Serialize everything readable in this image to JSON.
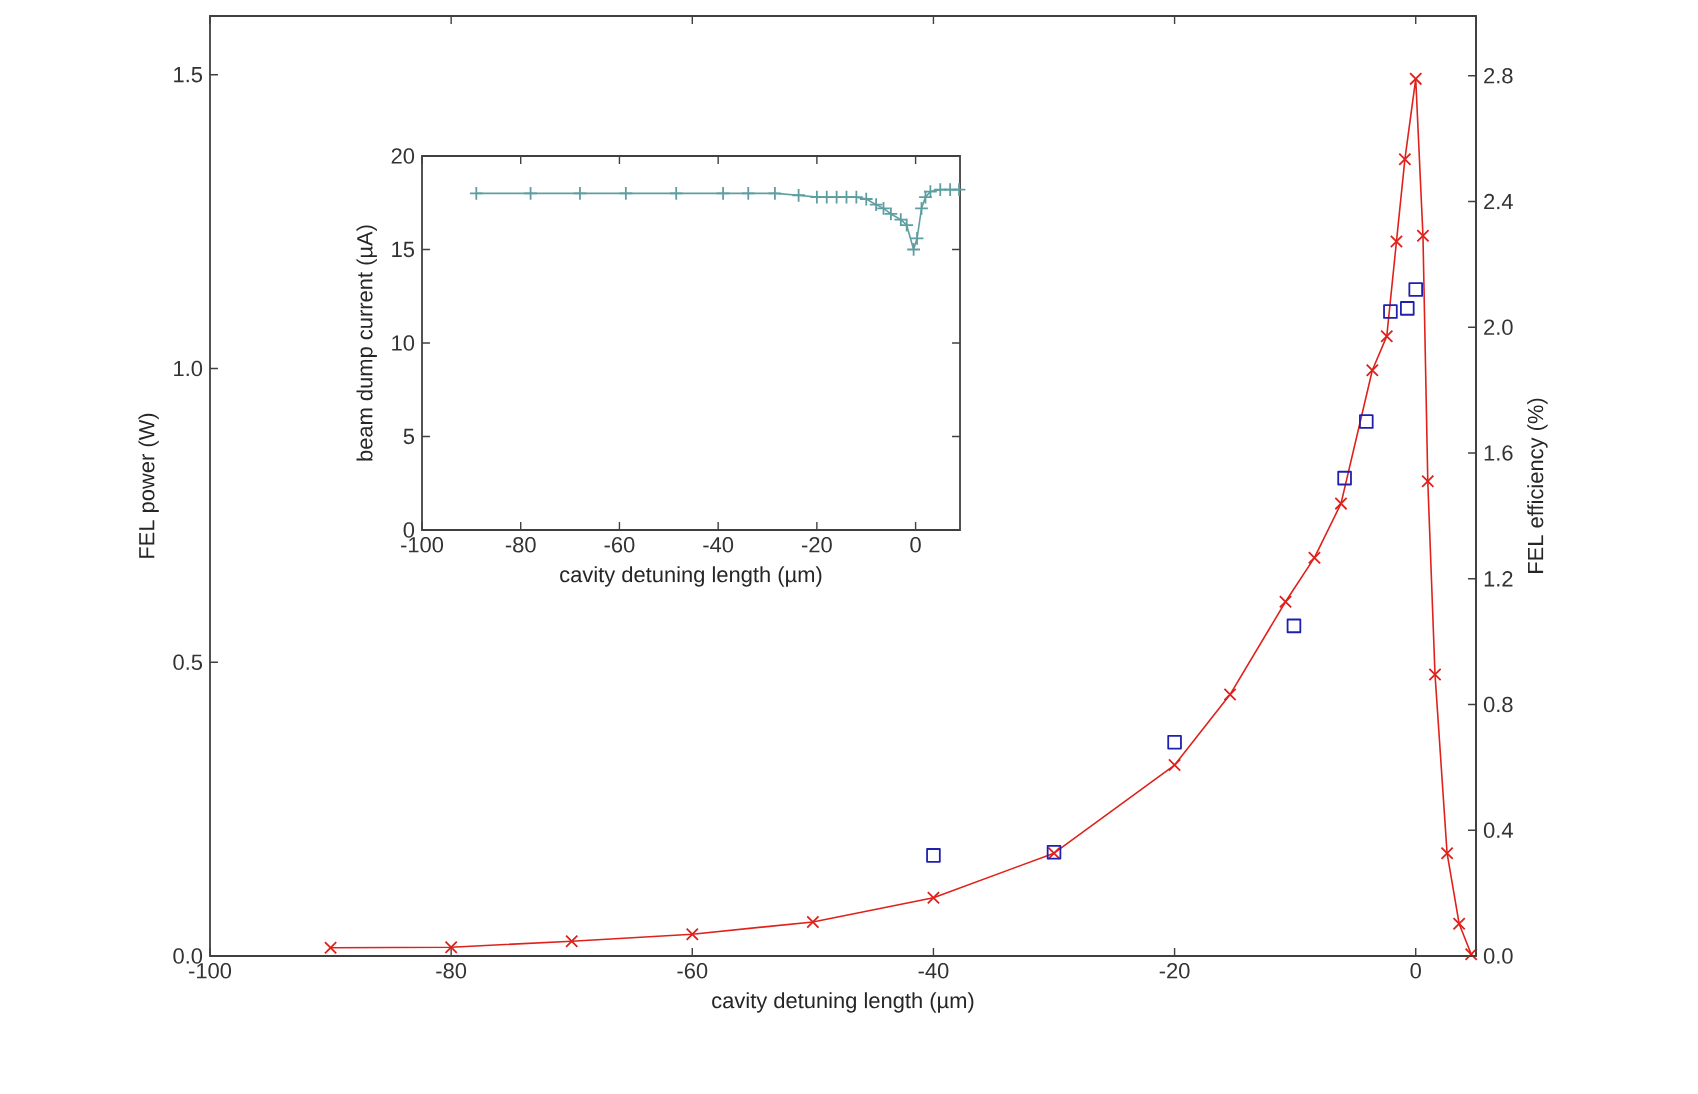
{
  "chart_data": [
    {
      "type": "line",
      "xlabel": "cavity detuning length (µm)",
      "ylabel": "FEL power (W)",
      "y2label": "FEL efficiency (%)",
      "xlim": [
        -100,
        5
      ],
      "xticks": [
        -100,
        -80,
        -60,
        -40,
        -20,
        0
      ],
      "ylim": [
        0,
        1.6
      ],
      "yticks": [
        {
          "value": 0,
          "label": "0.0"
        },
        {
          "value": 0.5,
          "label": "0.5"
        },
        {
          "value": 1.0,
          "label": "1.0"
        },
        {
          "value": 1.5,
          "label": "1.5"
        }
      ],
      "y2lim": [
        0,
        2.99
      ],
      "y2ticks": [
        {
          "value": 0,
          "label": "0.0"
        },
        {
          "value": 0.4,
          "label": "0.4"
        },
        {
          "value": 0.8,
          "label": "0.8"
        },
        {
          "value": 1.2,
          "label": "1.2"
        },
        {
          "value": 1.6,
          "label": "1.6"
        },
        {
          "value": 2.0,
          "label": "2.0"
        },
        {
          "value": 2.4,
          "label": "2.4"
        },
        {
          "value": 2.8,
          "label": "2.8"
        }
      ],
      "series": [
        {
          "color": "#e0201a",
          "marker": "cross",
          "line_style": "solid",
          "x": [
            -90,
            -80,
            -70,
            -60,
            -50,
            -40,
            -30,
            -20,
            -15.4,
            -10.8,
            -8.4,
            -6.2,
            -3.6,
            -2.4,
            -1.6,
            -0.9,
            0,
            0.6,
            1.0,
            1.6,
            2.6,
            3.6,
            4.6
          ],
          "values": [
            0.014,
            0.015,
            0.025,
            0.037,
            0.058,
            0.099,
            0.175,
            0.325,
            0.445,
            0.603,
            0.678,
            0.77,
            0.997,
            1.055,
            1.216,
            1.356,
            1.493,
            1.226,
            0.808,
            0.479,
            0.175,
            0.055,
            0.003
          ]
        },
        {
          "type": "scatter",
          "color": "#2020b0",
          "marker": "square",
          "axis": "y2",
          "x": [
            -40,
            -30,
            -20,
            -10.1,
            -5.9,
            -4.1,
            -2.1,
            -0.7,
            0
          ],
          "values": [
            0.32,
            0.33,
            0.68,
            1.05,
            1.52,
            1.7,
            2.05,
            2.06,
            2.12
          ]
        }
      ]
    },
    {
      "type": "line",
      "xlabel": "cavity detuning length (µm)",
      "ylabel": "beam dump current (µA)",
      "xlim": [
        -100,
        9
      ],
      "xticks": [
        -100,
        -80,
        -60,
        -40,
        -20,
        0
      ],
      "ylim": [
        0,
        20
      ],
      "yticks": [
        0,
        5,
        10,
        15,
        20
      ],
      "series": [
        {
          "color": "#5f9ea0",
          "marker": "cross",
          "line_style": "solid",
          "x": [
            -89,
            -78,
            -68,
            -58.7,
            -48.5,
            -39,
            -33.9,
            -28.5,
            -23.7,
            -20,
            -18,
            -16,
            -14,
            -12,
            -10,
            -8,
            -6.5,
            -5,
            -3,
            -1.8,
            -0.4,
            0.3,
            1.2,
            2,
            3,
            5,
            7,
            8.8
          ],
          "values": [
            18.0,
            18.0,
            18.0,
            18.0,
            18.0,
            18.0,
            18.0,
            18.0,
            17.9,
            17.8,
            17.8,
            17.8,
            17.8,
            17.8,
            17.7,
            17.4,
            17.2,
            16.9,
            16.6,
            16.3,
            15.0,
            15.6,
            17.2,
            17.8,
            18.1,
            18.2,
            18.2,
            18.2
          ]
        }
      ]
    }
  ]
}
